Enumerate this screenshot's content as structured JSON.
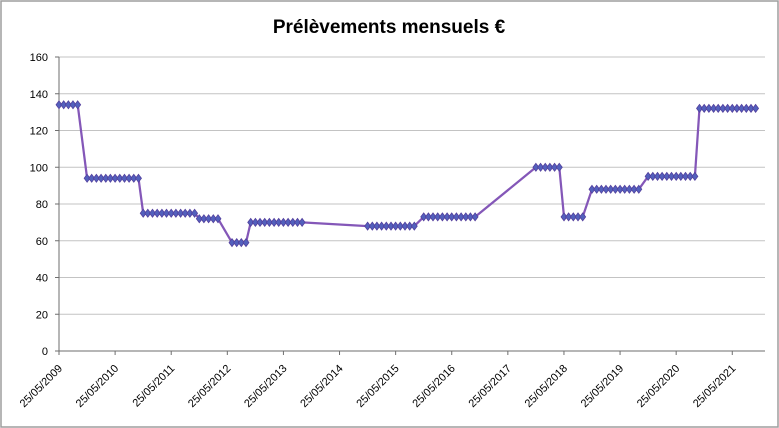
{
  "chart_data": {
    "type": "line",
    "title": "Prélèvements mensuels €",
    "xlabel": "",
    "ylabel": "",
    "ylim": [
      0,
      160
    ],
    "ytick_step": 20,
    "ytick_labels": [
      "0",
      "20",
      "40",
      "60",
      "80",
      "100",
      "120",
      "140",
      "160"
    ],
    "xtick_labels": [
      "25/05/2009",
      "25/05/2010",
      "25/05/2011",
      "25/05/2012",
      "25/05/2013",
      "25/05/2014",
      "25/05/2015",
      "25/05/2016",
      "25/05/2017",
      "25/05/2018",
      "25/05/2019",
      "25/05/2020",
      "25/05/2021"
    ],
    "months_between_ticks": 12,
    "x_axis_total_months": 151,
    "x_start_date": "25/05/2009",
    "grid": true,
    "legend": "none",
    "series": [
      {
        "name": "Prélèvements mensuels €",
        "marker": "diamond",
        "line_color": "#8457B8",
        "marker_color": "#5360BC",
        "marker_outline": "#533D9C",
        "note_gaps": "stretches without markers are straight interpolation lines between data segments",
        "segments_month_start_end_value": [
          [
            0,
            4,
            134
          ],
          [
            6,
            17,
            94
          ],
          [
            18,
            29,
            75
          ],
          [
            30,
            34,
            72
          ],
          [
            37,
            40,
            59
          ],
          [
            41,
            52,
            70
          ],
          [
            66,
            76,
            68
          ],
          [
            78,
            89,
            73
          ],
          [
            102,
            107,
            100
          ],
          [
            108,
            112,
            73
          ],
          [
            114,
            124,
            88
          ],
          [
            126,
            136,
            95
          ],
          [
            137,
            149,
            132
          ]
        ]
      }
    ]
  },
  "colors": {
    "background": "#FFFFFF",
    "border": "#9D9D9D",
    "grid": "#C3C3C3",
    "axis": "#6E6E6E",
    "text": "#000000"
  }
}
